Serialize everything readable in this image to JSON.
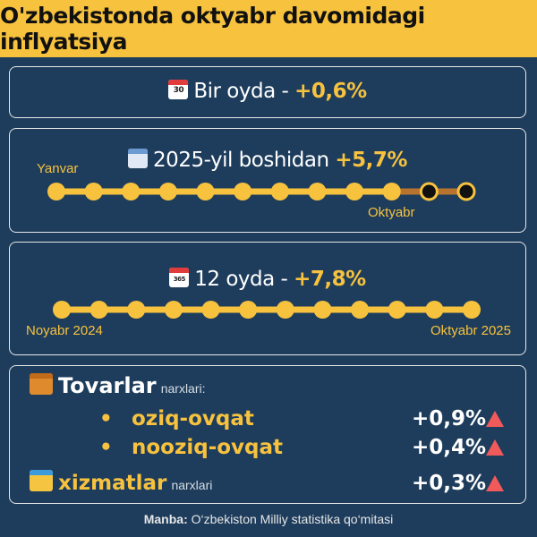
{
  "header": {
    "title": "O'zbekistonda oktyabr davomidagi inflyatsiya"
  },
  "monthly": {
    "icon_text": "30",
    "label": "Bir oyda - ",
    "value": "+0,6%"
  },
  "ytd": {
    "label": "2025-yil boshidan ",
    "value": "+5,7%",
    "start_label": "Yanvar",
    "end_label": "Oktyabr",
    "months_total": 12,
    "months_passed": 10
  },
  "yearly": {
    "icon_text": "365",
    "label": "12 oyda - ",
    "value": "+7,8%",
    "start_label": "Noyabr 2024",
    "end_label": "Oktyabr 2025",
    "points": 12
  },
  "goods": {
    "title": "Tovarlar",
    "subtitle": "narxlari:",
    "items": [
      {
        "name": "oziq-ovqat",
        "value": "+0,9%"
      },
      {
        "name": "nooziq-ovqat",
        "value": "+0,4%"
      }
    ]
  },
  "services": {
    "title": "xizmatlar",
    "subtitle": "narxlari",
    "value": "+0,3%"
  },
  "footer": {
    "source_label": "Manba:",
    "source_text": " O‘zbekiston Milliy statistika qo‘mitasi"
  },
  "colors": {
    "background": "#1e3d5c",
    "accent": "#f7c23e",
    "past": "#b8742f",
    "up_arrow": "#f05a5a"
  }
}
